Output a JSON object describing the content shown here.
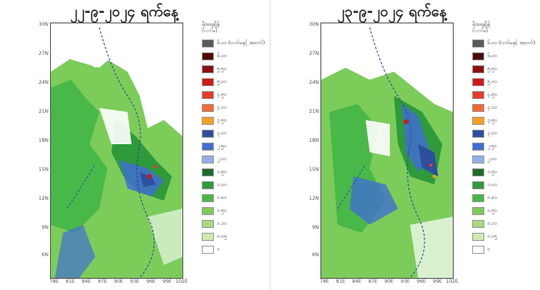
{
  "panels": [
    {
      "title": "၂၂-၉-၂၀၂၄ ရက်နေ့",
      "y_ticks": [
        "30N",
        "27N",
        "24N",
        "21N",
        "18N",
        "15N",
        "12N",
        "9N",
        "6N"
      ],
      "x_ticks": [
        "78E",
        "81E",
        "84E",
        "87E",
        "90E",
        "93E",
        "96E",
        "99E",
        "102E"
      ]
    },
    {
      "title": "၂၃-၉-၂၀၂၄ ရက်နေ့",
      "y_ticks": [
        "30N",
        "27N",
        "24N",
        "21N",
        "18N",
        "15N",
        "12N",
        "9N",
        "6N"
      ],
      "x_ticks": [
        "78E",
        "81E",
        "84E",
        "87E",
        "90E",
        "93E",
        "96E",
        "99E",
        "102E"
      ]
    }
  ],
  "legend": {
    "title": "မိုးရေချိန်",
    "unit": "(လက်မ)",
    "items": [
      {
        "label": "၆.၀၀ (လက်မနှင့် အထက်)",
        "color": "#5a5a5a"
      },
      {
        "label": "၆.၀၀",
        "color": "#4a0a0a"
      },
      {
        "label": "၅.၅၀",
        "color": "#8b1010"
      },
      {
        "label": "၅.၀၀",
        "color": "#d01818"
      },
      {
        "label": "၄.၅၀",
        "color": "#e83a2a"
      },
      {
        "label": "၄.၀၀",
        "color": "#f26a30"
      },
      {
        "label": "၃.၅၀",
        "color": "#f5a020"
      },
      {
        "label": "၃.၀၀",
        "color": "#2e4fa0"
      },
      {
        "label": "၂.၅၀",
        "color": "#3f6fd0"
      },
      {
        "label": "၂.၀၀",
        "color": "#8fb0e8"
      },
      {
        "label": "၁.၅၀",
        "color": "#1e6a28"
      },
      {
        "label": "၁.၀၀",
        "color": "#2f9a3a"
      },
      {
        "label": "၀.၈၀",
        "color": "#48b848"
      },
      {
        "label": "၀.၅၀",
        "color": "#7ccc5a"
      },
      {
        "label": "၀.၁၀",
        "color": "#a8dc80"
      },
      {
        "label": "၀.၀၅",
        "color": "#cfeab0"
      },
      {
        "label": "၀",
        "color": "#ffffff"
      }
    ]
  }
}
